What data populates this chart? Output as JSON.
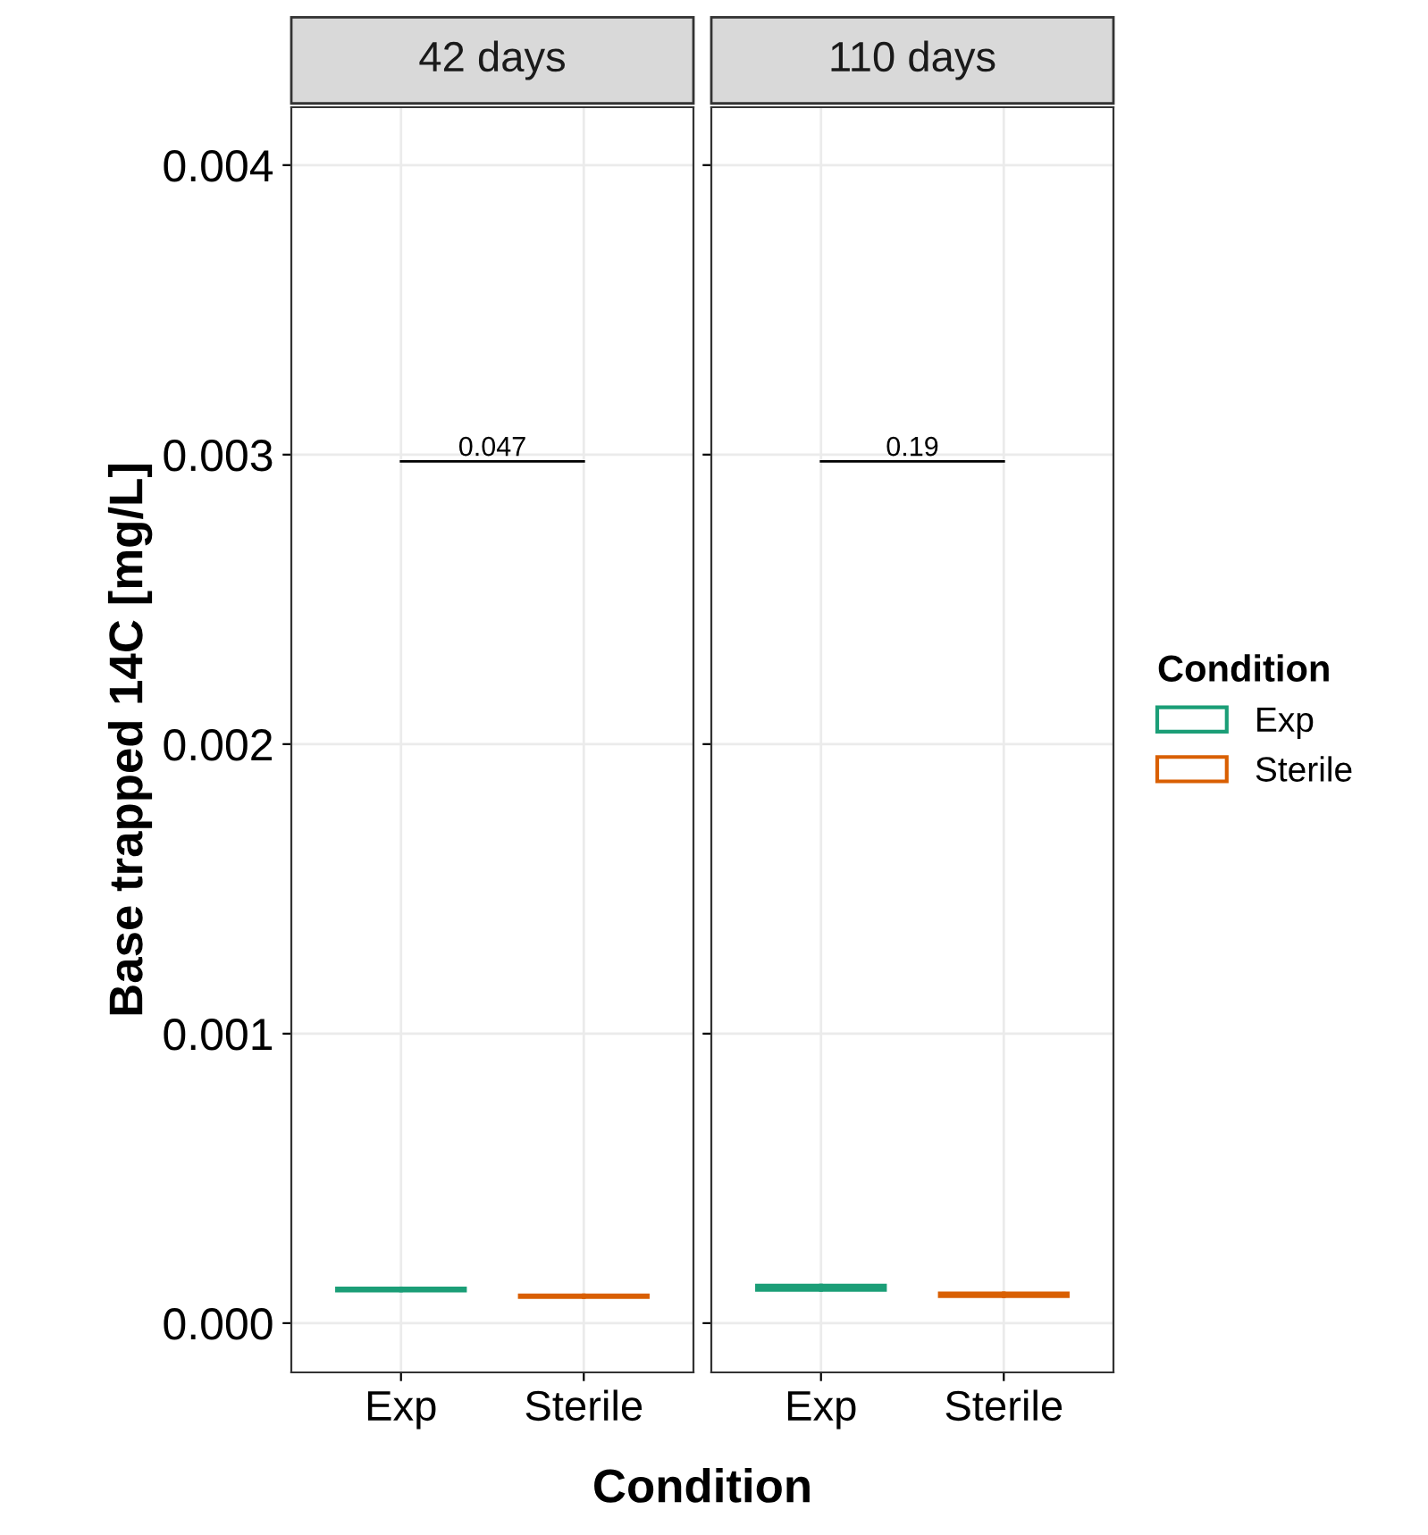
{
  "chart_data": [
    {
      "type": "box",
      "title": "42 days",
      "categories": [
        "Exp",
        "Sterile"
      ],
      "xlabel": "Condition",
      "ylabel": "Base trapped 14C [mg/L]",
      "ylim": [
        -0.00017,
        0.0042
      ],
      "yticks": [
        {
          "value": 0,
          "label": "0.000"
        },
        {
          "value": 0.001,
          "label": "0.001"
        },
        {
          "value": 0.002,
          "label": "0.002"
        },
        {
          "value": 0.003,
          "label": "0.003"
        },
        {
          "value": 0.004,
          "label": "0.004"
        }
      ],
      "grid": true,
      "legend": "right",
      "legend_title": "Condition",
      "series": [
        {
          "name": "Exp",
          "color": "#1b9e77",
          "boxes": [
            {
              "low": 0.000113,
              "q1": 0.000113,
              "median": 0.000117,
              "q3": 0.00012,
              "high": 0.00012
            },
            null
          ]
        },
        {
          "name": "Sterile",
          "color": "#d95f02",
          "boxes": [
            null,
            {
              "low": 9e-05,
              "q1": 9e-05,
              "median": 9.3e-05,
              "q3": 9.6e-05,
              "high": 9.6e-05
            }
          ]
        }
      ],
      "annotations": [
        "0.047"
      ]
    },
    {
      "type": "box",
      "title": "110 days",
      "categories": [
        "Exp",
        "Sterile"
      ],
      "ylim": [
        -0.00017,
        0.0042
      ],
      "yticks": [
        {
          "value": 0,
          "label": null
        },
        {
          "value": 0.001,
          "label": null
        },
        {
          "value": 0.002,
          "label": null
        },
        {
          "value": 0.003,
          "label": null
        },
        {
          "value": 0.004,
          "label": null
        }
      ],
      "grid": true,
      "tick_labels": "x",
      "series": [
        {
          "color": "#1b9e77",
          "boxes": [
            {
              "low": 0.000115,
              "q1": 0.000115,
              "median": 0.000123,
              "q3": 0.00013,
              "high": 0.00013
            },
            null
          ]
        },
        {
          "color": "#d95f02",
          "boxes": [
            null,
            {
              "low": 9.3e-05,
              "q1": 9.3e-05,
              "median": 9.9e-05,
              "q3": 0.000103,
              "high": 0.000103
            }
          ]
        }
      ],
      "annotations": [
        "0.19"
      ]
    }
  ]
}
